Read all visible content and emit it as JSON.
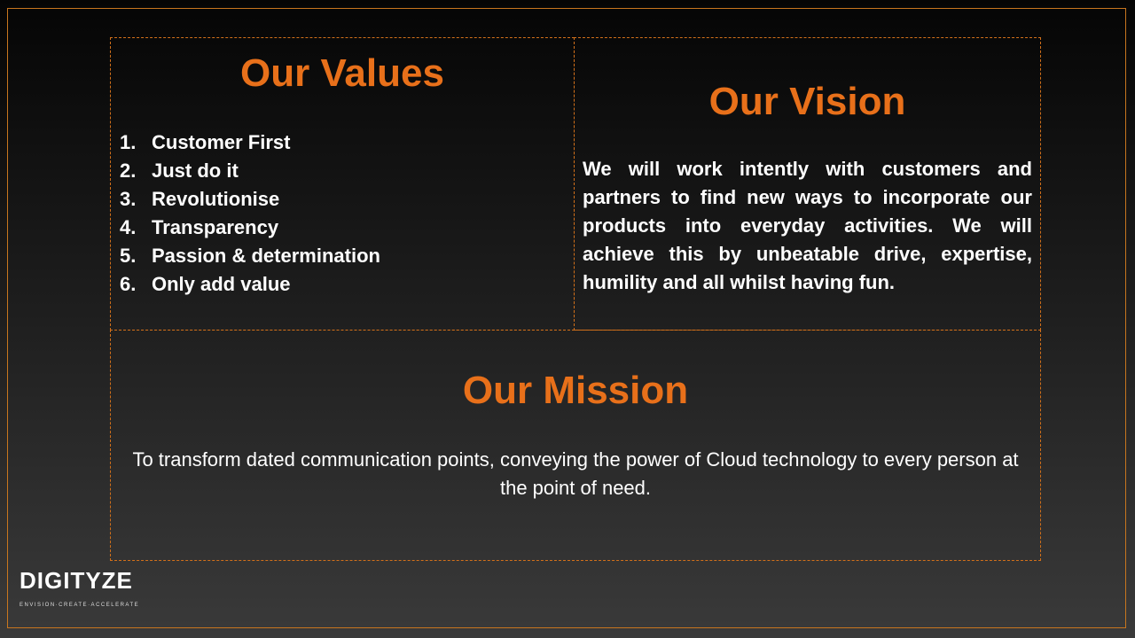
{
  "values": {
    "heading": "Our Values",
    "items": [
      {
        "num": "1.",
        "text": "Customer First"
      },
      {
        "num": "2.",
        "text": "Just do it"
      },
      {
        "num": "3.",
        "text": "Revolutionise"
      },
      {
        "num": "4.",
        "text": "Transparency"
      },
      {
        "num": "5.",
        "text": "Passion & determination"
      },
      {
        "num": "6.",
        "text": "Only add value"
      }
    ]
  },
  "vision": {
    "heading": "Our Vision",
    "text": "We will work intently with customers and partners to find new ways to incorporate our products into everyday activities. We will achieve this by unbeatable drive, expertise, humility and all whilst having fun."
  },
  "mission": {
    "heading": "Our Mission",
    "text": "To transform dated communication points, conveying the power of Cloud technology to every person at the point of need."
  },
  "logo": {
    "name": "DIGITYZE",
    "tagline": "ENVISION·CREATE·ACCELERATE"
  },
  "colors": {
    "accent": "#e8701a",
    "border": "#d2701a",
    "text": "#ffffff"
  }
}
